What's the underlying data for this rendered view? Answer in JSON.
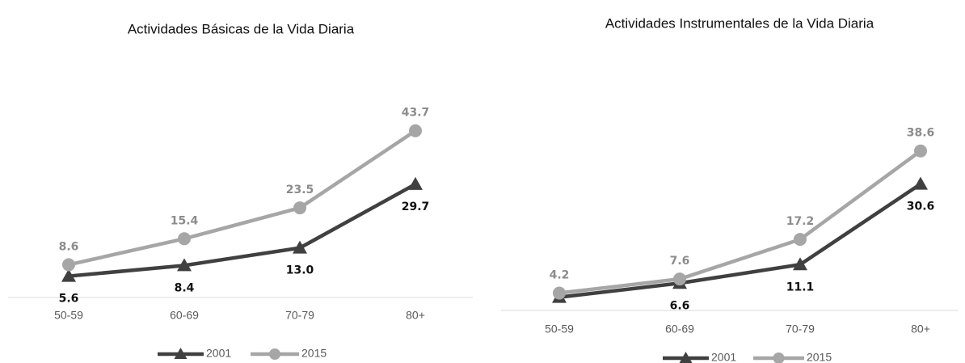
{
  "chart_data": [
    {
      "type": "line",
      "title": "Actividades Básicas de la Vida Diaria",
      "categories": [
        "50-59",
        "60-69",
        "70-79",
        "80+"
      ],
      "ylim": [
        0,
        50
      ],
      "series": [
        {
          "name": "2001",
          "color": "#404040",
          "marker": "triangle",
          "values": [
            5.6,
            8.4,
            13.0,
            29.7
          ],
          "value_labels": [
            "5.6",
            "8.4",
            "13.0",
            "29.7"
          ]
        },
        {
          "name": "2015",
          "color": "#a6a6a6",
          "marker": "circle",
          "values": [
            8.6,
            15.4,
            23.5,
            43.7
          ],
          "value_labels": [
            "8.6",
            "15.4",
            "23.5",
            "43.7"
          ]
        }
      ]
    },
    {
      "type": "line",
      "title": "Actividades Instrumentales de la Vida Diaria",
      "categories": [
        "50-59",
        "60-69",
        "70-79",
        "80+"
      ],
      "ylim": [
        0,
        45
      ],
      "series": [
        {
          "name": "2001",
          "color": "#404040",
          "marker": "triangle",
          "values": [
            3.2,
            6.6,
            11.1,
            30.6
          ],
          "value_labels": [
            null,
            "6.6",
            "11.1",
            "30.6"
          ]
        },
        {
          "name": "2015",
          "color": "#a6a6a6",
          "marker": "circle",
          "values": [
            4.2,
            7.6,
            17.2,
            38.6
          ],
          "value_labels": [
            "4.2",
            "7.6",
            "17.2",
            "38.6"
          ]
        }
      ]
    }
  ]
}
